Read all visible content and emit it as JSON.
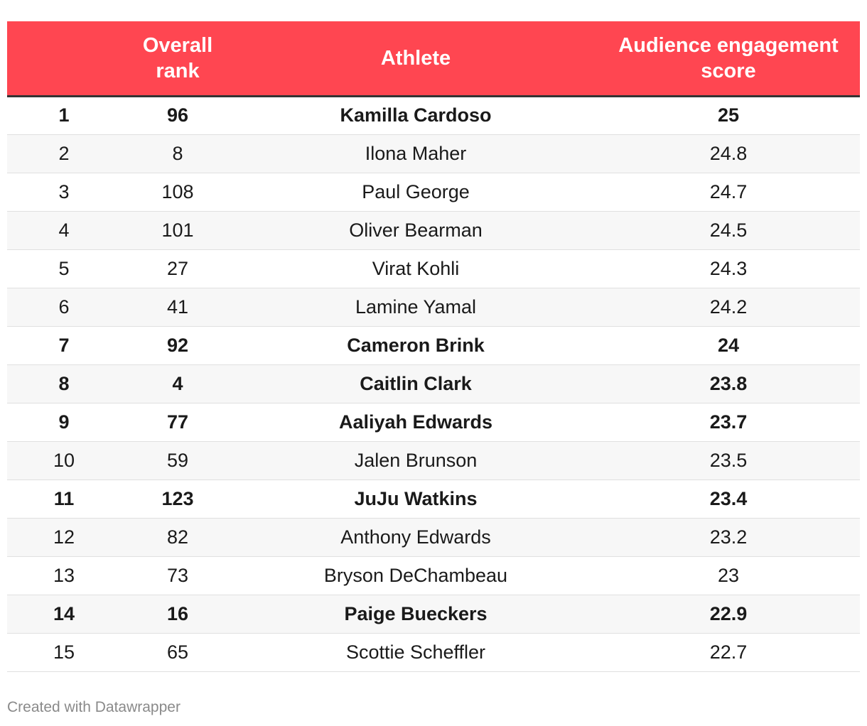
{
  "chart_data": {
    "type": "table",
    "columns": [
      "",
      "Overall rank",
      "Athlete",
      "Audience engagement score"
    ],
    "rows": [
      {
        "rank": "1",
        "overall": "96",
        "athlete": "Kamilla Cardoso",
        "score": "25",
        "bold": true
      },
      {
        "rank": "2",
        "overall": "8",
        "athlete": "Ilona Maher",
        "score": "24.8",
        "bold": false
      },
      {
        "rank": "3",
        "overall": "108",
        "athlete": "Paul George",
        "score": "24.7",
        "bold": false
      },
      {
        "rank": "4",
        "overall": "101",
        "athlete": "Oliver Bearman",
        "score": "24.5",
        "bold": false
      },
      {
        "rank": "5",
        "overall": "27",
        "athlete": "Virat Kohli",
        "score": "24.3",
        "bold": false
      },
      {
        "rank": "6",
        "overall": "41",
        "athlete": "Lamine Yamal",
        "score": "24.2",
        "bold": false
      },
      {
        "rank": "7",
        "overall": "92",
        "athlete": "Cameron Brink",
        "score": "24",
        "bold": true
      },
      {
        "rank": "8",
        "overall": "4",
        "athlete": "Caitlin Clark",
        "score": "23.8",
        "bold": true
      },
      {
        "rank": "9",
        "overall": "77",
        "athlete": "Aaliyah Edwards",
        "score": "23.7",
        "bold": true
      },
      {
        "rank": "10",
        "overall": "59",
        "athlete": "Jalen Brunson",
        "score": "23.5",
        "bold": false
      },
      {
        "rank": "11",
        "overall": "123",
        "athlete": "JuJu Watkins",
        "score": "23.4",
        "bold": true
      },
      {
        "rank": "12",
        "overall": "82",
        "athlete": "Anthony Edwards",
        "score": "23.2",
        "bold": false
      },
      {
        "rank": "13",
        "overall": "73",
        "athlete": "Bryson DeChambeau",
        "score": "23",
        "bold": false
      },
      {
        "rank": "14",
        "overall": "16",
        "athlete": "Paige Bueckers",
        "score": "22.9",
        "bold": true
      },
      {
        "rank": "15",
        "overall": "65",
        "athlete": "Scottie Scheffler",
        "score": "22.7",
        "bold": false
      }
    ]
  },
  "colors": {
    "header_background": "#ff4651",
    "header_text": "#ffffff",
    "stripe": "#f7f7f7"
  },
  "footer": {
    "credit": "Created with Datawrapper"
  }
}
